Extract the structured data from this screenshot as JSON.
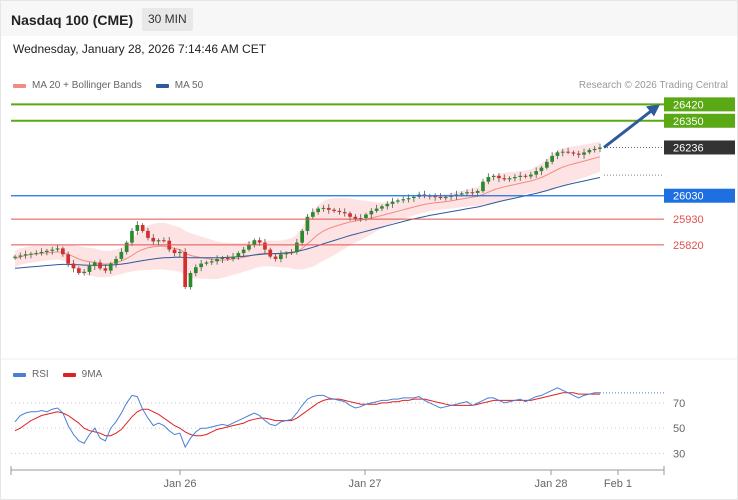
{
  "header": {
    "title": "Nasdaq 100 (CME)",
    "timeframe": "30 MIN",
    "datetime": "Wednesday, January 28, 2026 7:14:46 AM CET"
  },
  "price_legend": [
    {
      "label": "MA 20 + Bollinger Bands",
      "color": "#f28b82"
    },
    {
      "label": "MA 50",
      "color": "#2d5a9b"
    }
  ],
  "copyright": "Research © 2026 Trading Central",
  "rsi_legend": [
    {
      "label": "RSI",
      "color": "#4a7fd6"
    },
    {
      "label": "9MA",
      "color": "#e02020"
    }
  ],
  "colors": {
    "up_candle": "#2b8a2b",
    "down_candle": "#d32f2f",
    "resistance": "#5aa814",
    "pivot": "#1e6fe0",
    "support": "#e05050",
    "current": "#333333",
    "arrow": "#2d5a9b",
    "band": "#fde0e0"
  },
  "chart_data": [
    {
      "type": "candlestick",
      "title": "Nasdaq 100 (CME)",
      "timeframe": "30 MIN",
      "x_tick_labels": [
        "Jan 26",
        "Jan 27",
        "Jan 28",
        "Feb 1"
      ],
      "levels": [
        {
          "label": "26420",
          "value": 26420,
          "role": "resistance"
        },
        {
          "label": "26350",
          "value": 26350,
          "role": "resistance"
        },
        {
          "label": "26236",
          "value": 26236,
          "role": "current"
        },
        {
          "label": "26030",
          "value": 26030,
          "role": "pivot"
        },
        {
          "label": "25930",
          "value": 25930,
          "role": "support"
        },
        {
          "label": "25820",
          "value": 25820,
          "role": "support"
        }
      ],
      "ylim": [
        25350,
        26460
      ],
      "close": [
        25770,
        25775,
        25780,
        25782,
        25785,
        25790,
        25795,
        25800,
        25805,
        25780,
        25740,
        25720,
        25700,
        25705,
        25730,
        25745,
        25720,
        25710,
        25740,
        25760,
        25790,
        25830,
        25880,
        25905,
        25880,
        25850,
        25835,
        25840,
        25838,
        25800,
        25785,
        25790,
        25640,
        25700,
        25725,
        25740,
        25745,
        25750,
        25760,
        25765,
        25760,
        25770,
        25785,
        25800,
        25820,
        25840,
        25830,
        25800,
        25770,
        25760,
        25780,
        25785,
        25790,
        25830,
        25880,
        25940,
        25960,
        25975,
        25978,
        25970,
        25965,
        25960,
        25955,
        25940,
        25930,
        25935,
        25950,
        25965,
        25975,
        25985,
        25995,
        26005,
        26010,
        26015,
        26020,
        26025,
        26035,
        26030,
        26028,
        26025,
        26020,
        26025,
        26030,
        26035,
        26040,
        26045,
        26042,
        26050,
        26090,
        26110,
        26115,
        26105,
        26100,
        26105,
        26110,
        26115,
        26112,
        26120,
        26135,
        26150,
        26175,
        26200,
        26215,
        26218,
        26215,
        26210,
        26205,
        26215,
        26225,
        26230,
        26236
      ],
      "ma20": [
        25760,
        25770,
        25775,
        25780,
        25782,
        25784,
        25786,
        25788,
        25790,
        25788,
        25780,
        25770,
        25760,
        25752,
        25748,
        25745,
        25740,
        25738,
        25740,
        25745,
        25752,
        25762,
        25775,
        25790,
        25800,
        25808,
        25812,
        25815,
        25815,
        25810,
        25805,
        25800,
        25785,
        25775,
        25770,
        25766,
        25762,
        25758,
        25755,
        25755,
        25757,
        25760,
        25763,
        25767,
        25772,
        25778,
        25782,
        25784,
        25784,
        25782,
        25782,
        25783,
        25784,
        25790,
        25805,
        25825,
        25845,
        25865,
        25880,
        25890,
        25898,
        25905,
        25912,
        25918,
        25922,
        25926,
        25930,
        25935,
        25940,
        25946,
        25952,
        25958,
        25964,
        25970,
        25976,
        25982,
        25988,
        25993,
        25997,
        26000,
        26002,
        26005,
        26008,
        26012,
        26016,
        26020,
        26024,
        26028,
        26035,
        26045,
        26055,
        26062,
        26068,
        26073,
        26078,
        26083,
        26088,
        26093,
        26100,
        26108,
        26118,
        26130,
        26142,
        26152,
        26160,
        26166,
        26172,
        26178,
        26184,
        26190,
        26196
      ],
      "ma50": [
        25720,
        25722,
        25724,
        25726,
        25728,
        25730,
        25732,
        25734,
        25736,
        25737,
        25737,
        25736,
        25735,
        25734,
        25733,
        25733,
        25733,
        25733,
        25734,
        25736,
        25738,
        25741,
        25745,
        25749,
        25753,
        25757,
        25760,
        25763,
        25765,
        25766,
        25767,
        25768,
        25766,
        25765,
        25765,
        25765,
        25765,
        25765,
        25765,
        25766,
        25767,
        25768,
        25770,
        25772,
        25774,
        25777,
        25779,
        25781,
        25782,
        25783,
        25784,
        25786,
        25788,
        25792,
        25797,
        25803,
        25810,
        25817,
        25825,
        25832,
        25839,
        25846,
        25853,
        25860,
        25866,
        25872,
        25878,
        25884,
        25890,
        25896,
        25902,
        25908,
        25914,
        25920,
        25926,
        25931,
        25936,
        25941,
        25946,
        25950,
        25954,
        25958,
        25962,
        25966,
        25970,
        25974,
        25978,
        25982,
        25987,
        25993,
        25999,
        26005,
        26010,
        26015,
        26020,
        26025,
        26030,
        26035,
        26040,
        26046,
        26052,
        26059,
        26066,
        26072,
        26078,
        26083,
        26088,
        26093,
        26098,
        26103,
        26108
      ],
      "bb_width": [
        35,
        35,
        35,
        35,
        34,
        33,
        32,
        32,
        32,
        35,
        40,
        48,
        55,
        58,
        60,
        60,
        58,
        56,
        55,
        55,
        56,
        60,
        68,
        80,
        88,
        95,
        98,
        100,
        100,
        98,
        96,
        95,
        95,
        95,
        93,
        90,
        87,
        84,
        80,
        76,
        72,
        68,
        65,
        62,
        60,
        58,
        56,
        55,
        55,
        55,
        57,
        60,
        65,
        75,
        90,
        105,
        118,
        125,
        128,
        126,
        122,
        115,
        108,
        100,
        92,
        85,
        78,
        70,
        62,
        55,
        50,
        45,
        42,
        40,
        38,
        36,
        35,
        34,
        33,
        32,
        32,
        32,
        33,
        34,
        35,
        36,
        38,
        40,
        45,
        52,
        58,
        60,
        60,
        58,
        55,
        52,
        50,
        50,
        55,
        60,
        68,
        75,
        80,
        80,
        78,
        75,
        72,
        70,
        68,
        66,
        64
      ]
    },
    {
      "type": "line",
      "title": "RSI",
      "y_tick_labels": [
        "70",
        "50",
        "30"
      ],
      "ylim": [
        20,
        85
      ],
      "series": [
        {
          "name": "RSI",
          "values": [
            55,
            60,
            62,
            63,
            63,
            64,
            63,
            65,
            66,
            62,
            52,
            45,
            40,
            38,
            45,
            50,
            42,
            40,
            50,
            55,
            62,
            70,
            76,
            75,
            65,
            58,
            52,
            54,
            52,
            48,
            45,
            46,
            35,
            42,
            47,
            50,
            50,
            51,
            52,
            53,
            52,
            54,
            56,
            58,
            60,
            62,
            60,
            56,
            53,
            52,
            55,
            56,
            57,
            62,
            68,
            73,
            75,
            76,
            76,
            74,
            73,
            72,
            71,
            68,
            66,
            67,
            69,
            70,
            71,
            72,
            72,
            73,
            73,
            74,
            74,
            74,
            75,
            72,
            70,
            68,
            66,
            67,
            68,
            69,
            70,
            71,
            68,
            70,
            72,
            74,
            74,
            72,
            70,
            71,
            72,
            73,
            71,
            73,
            75,
            76,
            78,
            80,
            82,
            80,
            78,
            76,
            74,
            76,
            77,
            78,
            78
          ]
        },
        {
          "name": "9MA",
          "values": [
            48,
            50,
            53,
            56,
            58,
            60,
            61,
            62,
            63,
            62,
            60,
            57,
            54,
            50,
            48,
            47,
            46,
            44,
            44,
            46,
            49,
            54,
            59,
            63,
            65,
            65,
            63,
            61,
            58,
            55,
            52,
            50,
            47,
            45,
            44,
            44,
            45,
            47,
            49,
            50,
            51,
            52,
            53,
            54,
            56,
            57,
            58,
            58,
            57,
            56,
            56,
            56,
            56,
            58,
            61,
            64,
            67,
            70,
            72,
            73,
            73,
            73,
            72,
            71,
            70,
            69,
            69,
            69,
            69,
            70,
            70,
            71,
            71,
            72,
            72,
            73,
            73,
            73,
            72,
            71,
            70,
            69,
            68,
            68,
            68,
            68,
            68,
            69,
            70,
            71,
            72,
            72,
            72,
            72,
            72,
            72,
            72,
            72,
            73,
            74,
            75,
            76,
            77,
            78,
            78,
            78,
            77,
            77,
            77,
            77,
            77
          ]
        }
      ]
    }
  ]
}
